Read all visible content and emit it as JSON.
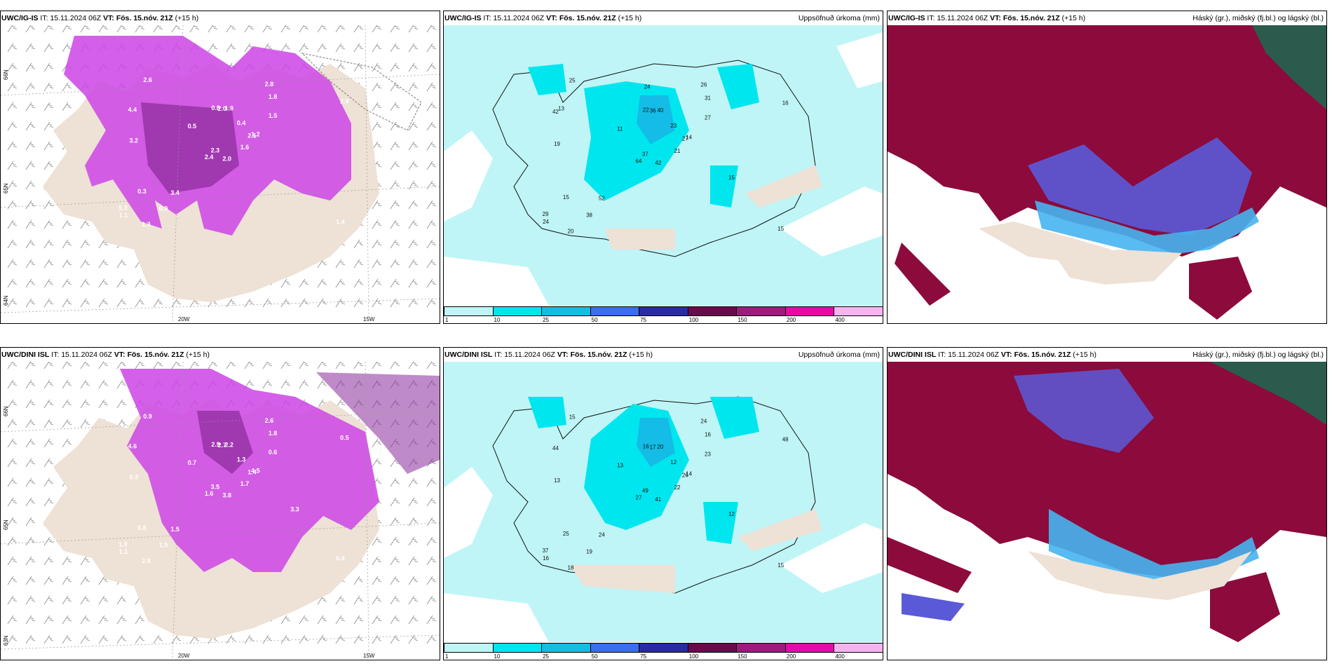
{
  "rows": [
    {
      "model": "UWC/IG-IS",
      "it_label": "IT:",
      "it_value": "15.11.2024 06Z",
      "vt_label": "VT:",
      "vt_value": "Fös. 15.nóv. 21Z",
      "lead": "(+15 h)"
    },
    {
      "model": "UWC/DINI ISL",
      "it_label": "IT:",
      "it_value": "15.11.2024 06Z",
      "vt_label": "VT:",
      "vt_value": "Fös. 15.nóv. 21Z",
      "lead": "(+15 h)"
    }
  ],
  "titles": {
    "precip": "Uppsöfnuð úrkoma (mm)",
    "clouds": "Háský (gr.), miðský (fj.bl.) og lágský (bl.)"
  },
  "axis_labels": {
    "lat66": "66N",
    "lat65": "65N",
    "lat64": "64N",
    "lat63": "63N",
    "lon20": "20W",
    "lon15": "15W"
  },
  "precip_colorbar": {
    "ticks": [
      "1",
      "10",
      "25",
      "50",
      "75",
      "100",
      "150",
      "200",
      "400"
    ],
    "colors": [
      "#bff5f7",
      "#00e6ef",
      "#14bce6",
      "#3c6cf0",
      "#2a2aa8",
      "#6a0a4c",
      "#a3187e",
      "#e60aa8",
      "#f5b4f0"
    ]
  },
  "precip_labels_top": [
    "42",
    "42",
    "37",
    "29",
    "27",
    "52",
    "26",
    "40",
    "31",
    "21",
    "25",
    "15",
    "19",
    "16",
    "64",
    "27",
    "20",
    "22",
    "23",
    "15",
    "11",
    "24",
    "38",
    "36",
    "14",
    "15",
    "13",
    "24"
  ],
  "precip_labels_bottom": [
    "41",
    "44",
    "49",
    "37",
    "26",
    "24",
    "24",
    "20",
    "16",
    "22",
    "15",
    "15",
    "13",
    "48",
    "27",
    "23",
    "18",
    "16",
    "12",
    "25",
    "13",
    "16",
    "19",
    "17",
    "14",
    "12"
  ],
  "snow_labels_top": [
    "2.0",
    "4.4",
    "2.3",
    "5.3",
    "2.1",
    "3.4",
    "2.8",
    "1.9",
    "1.8",
    "1.6",
    "2.6",
    "1.4",
    "3.2",
    "2.9",
    "2.4",
    "1.5",
    "1.3",
    "0.8",
    "0.4",
    "0.3",
    "0.5",
    "1.1",
    "0.9",
    "2.0",
    "1.2"
  ],
  "snow_labels_bottom": [
    "3.8",
    "4.6",
    "3.5",
    "1.9",
    "1.4",
    "1.5",
    "2.6",
    "2.2",
    "1.8",
    "1.7",
    "0.9",
    "0.4",
    "0.3",
    "0.5",
    "1.6",
    "0.6",
    "2.8",
    "2.9",
    "1.3",
    "0.8",
    "0.7",
    "1.1",
    "1.5",
    "2.7",
    "4.5",
    "3.3"
  ],
  "accent": {
    "land": "#eee1d5",
    "snow": "#cc44e6",
    "snow_dark": "#8a2a9a",
    "precip_sea": "#bff5f7",
    "cloud_high": "#8c0a3c",
    "cloud_mid": "#5a5ad8",
    "cloud_low": "#46b4f0"
  }
}
